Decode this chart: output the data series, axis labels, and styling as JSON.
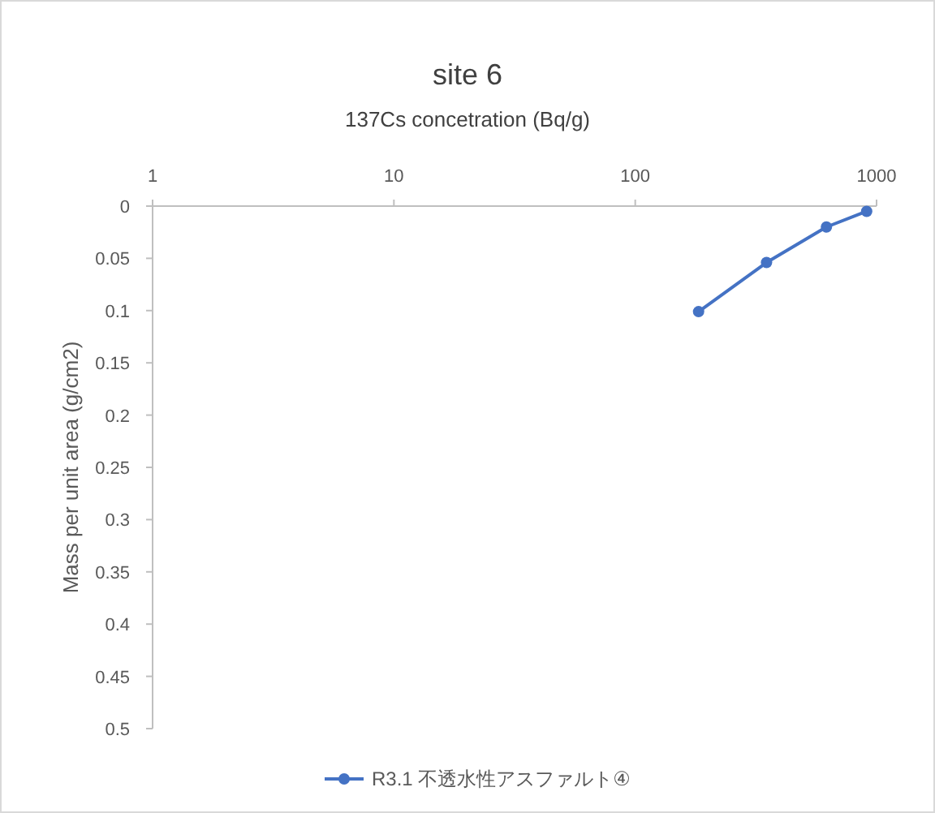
{
  "chart_data": {
    "type": "line",
    "title": "site 6",
    "xlabel": "137Cs concetration (Bq/g)",
    "ylabel": "Mass per unit area (g/cm2)",
    "log": "x",
    "xlim": [
      1,
      1000
    ],
    "xticks": [
      1,
      10,
      100,
      1000
    ],
    "ylim": [
      0.5,
      0
    ],
    "yticks": [
      0,
      0.05,
      0.1,
      0.15,
      0.2,
      0.25,
      0.3,
      0.35,
      0.4,
      0.45,
      0.5
    ],
    "grid": false,
    "legend": "bottom",
    "marker": "circle",
    "line_style": "solid",
    "series": [
      {
        "name": "R3.1 不透水性アスファルト④",
        "color": "#4472c4",
        "x": [
          183,
          350,
          620,
          910
        ],
        "values": [
          0.101,
          0.054,
          0.02,
          0.005
        ]
      }
    ]
  }
}
